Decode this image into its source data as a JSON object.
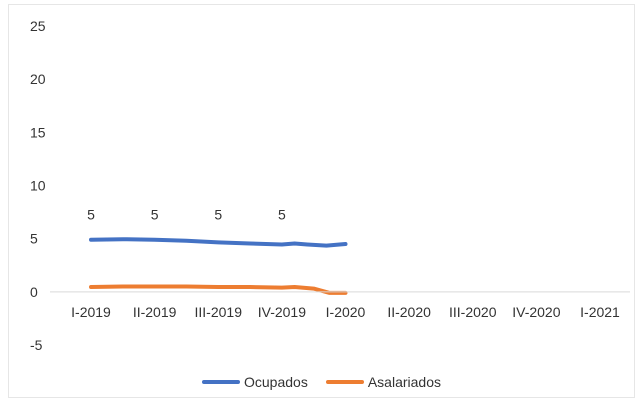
{
  "chart_data": {
    "type": "line",
    "categories": [
      "I-2019",
      "II-2019",
      "III-2019",
      "IV-2019",
      "I-2020",
      "II-2020",
      "III-2020",
      "IV-2020",
      "I-2021"
    ],
    "ylim": [
      -5,
      25
    ],
    "yticks": [
      -5,
      0,
      5,
      10,
      15,
      20,
      25
    ],
    "ytick_labels": [
      "-5",
      "0",
      "5",
      "10",
      "15",
      "20",
      "25"
    ],
    "grid": false,
    "legend_position": "bottom",
    "series": [
      {
        "name": "Ocupados",
        "color": "#4472c4",
        "x": [
          0,
          0.5,
          1,
          1.5,
          2,
          2.5,
          3,
          3.2,
          3.4,
          3.7,
          4
        ],
        "values": [
          4.9,
          4.95,
          4.9,
          4.8,
          4.65,
          4.55,
          4.45,
          4.55,
          4.45,
          4.35,
          4.5
        ],
        "data_labels": [
          {
            "category": 0,
            "value": 5,
            "text": "5"
          },
          {
            "category": 1,
            "value": 5,
            "text": "5"
          },
          {
            "category": 2,
            "value": 5,
            "text": "5"
          },
          {
            "category": 3,
            "value": 5,
            "text": "5"
          }
        ]
      },
      {
        "name": "Asalariados",
        "color": "#ed7d31",
        "x": [
          0,
          0.5,
          1,
          1.5,
          2,
          2.5,
          3,
          3.2,
          3.5,
          3.75,
          4
        ],
        "values": [
          0.45,
          0.5,
          0.5,
          0.5,
          0.45,
          0.45,
          0.4,
          0.45,
          0.3,
          -0.1,
          -0.1
        ]
      }
    ]
  }
}
